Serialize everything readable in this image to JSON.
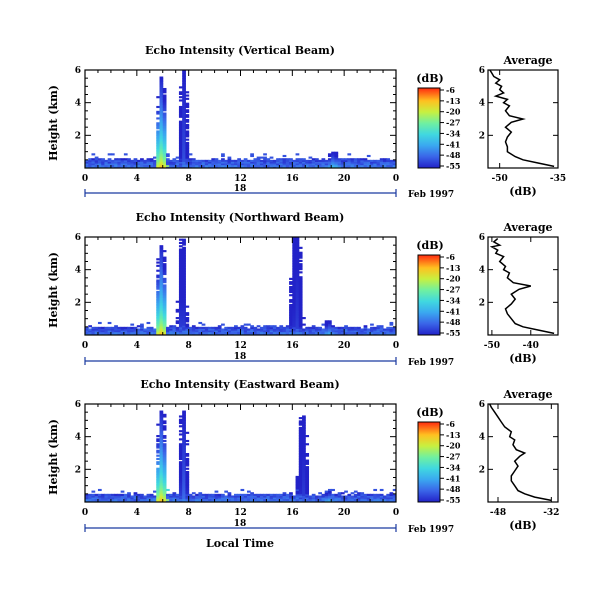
{
  "chart_data": [
    {
      "type": "heatmap",
      "title": "Echo Intensity (Vertical Beam)",
      "ylabel": "Height (km)",
      "xlim": [
        0,
        24
      ],
      "ylim": [
        0,
        6
      ],
      "x_ticks": [
        "0",
        "4",
        "8",
        "12",
        "16",
        "20",
        "0"
      ],
      "y_ticks": [
        "2",
        "4",
        "6"
      ],
      "date_axis": {
        "day_label": "18",
        "month_label": "Feb 1997"
      },
      "colorbar": {
        "unit": "(dB)",
        "ticks": [
          "-6",
          "-13",
          "-20",
          "-27",
          "-34",
          "-41",
          "-48",
          "-55"
        ]
      },
      "features": {
        "ground_layer_top_km": 0.55,
        "spikes": [
          {
            "t": 5.9,
            "width_h": 0.45,
            "top_km": 5.6,
            "core_db": -8
          },
          {
            "t": 7.6,
            "width_h": 0.4,
            "top_km": 6.0,
            "core_db": -48
          },
          {
            "t": 19.2,
            "width_h": 0.6,
            "top_km": 1.0,
            "core_db": -30
          }
        ]
      },
      "average_profile": {
        "title": "Average",
        "xlabel": "(dB)",
        "x_ticks": [
          "-50",
          "-35"
        ],
        "xlim": [
          -53,
          -35
        ],
        "y_ticks": [
          "2",
          "4",
          "6"
        ],
        "ylim": [
          0,
          6
        ],
        "height_km": [
          0.1,
          0.3,
          0.5,
          0.7,
          1.0,
          1.3,
          1.6,
          1.9,
          2.2,
          2.5,
          2.8,
          3.0,
          3.2,
          3.5,
          3.8,
          4.0,
          4.2,
          4.4,
          4.6,
          4.8,
          5.0,
          5.2,
          5.4,
          5.6,
          5.8,
          6.0
        ],
        "value_db": [
          -36,
          -40,
          -44,
          -46,
          -48,
          -48,
          -48.5,
          -48,
          -47,
          -48.5,
          -47,
          -44,
          -47.5,
          -48.5,
          -47.5,
          -49,
          -48,
          -51,
          -49,
          -50,
          -49.5,
          -51,
          -50,
          -51.5,
          -52,
          -52.5
        ]
      }
    },
    {
      "type": "heatmap",
      "title": "Echo Intensity (Northward Beam)",
      "ylabel": "Height (km)",
      "xlim": [
        0,
        24
      ],
      "ylim": [
        0,
        6
      ],
      "x_ticks": [
        "0",
        "4",
        "8",
        "12",
        "16",
        "20",
        "0"
      ],
      "y_ticks": [
        "2",
        "4",
        "6"
      ],
      "date_axis": {
        "day_label": "18",
        "month_label": "Feb 1997"
      },
      "colorbar": {
        "unit": "(dB)",
        "ticks": [
          "-6",
          "-13",
          "-20",
          "-27",
          "-34",
          "-41",
          "-48",
          "-55"
        ]
      },
      "features": {
        "ground_layer_top_km": 0.5,
        "spikes": [
          {
            "t": 5.9,
            "width_h": 0.45,
            "top_km": 5.5,
            "core_db": -8
          },
          {
            "t": 7.5,
            "width_h": 0.4,
            "top_km": 5.9,
            "core_db": -48
          },
          {
            "t": 16.3,
            "width_h": 0.6,
            "top_km": 6.0,
            "core_db": -50
          },
          {
            "t": 18.8,
            "width_h": 0.5,
            "top_km": 0.9,
            "core_db": -32
          }
        ]
      },
      "average_profile": {
        "title": "Average",
        "xlabel": "(dB)",
        "x_ticks": [
          "-50",
          "-40"
        ],
        "xlim": [
          -51,
          -33
        ],
        "y_ticks": [
          "2",
          "4",
          "6"
        ],
        "ylim": [
          0,
          6
        ],
        "height_km": [
          0.1,
          0.3,
          0.5,
          0.7,
          1.0,
          1.3,
          1.6,
          1.9,
          2.2,
          2.5,
          2.8,
          3.0,
          3.2,
          3.5,
          3.8,
          4.0,
          4.2,
          4.5,
          4.8,
          5.0,
          5.2,
          5.4,
          5.5,
          5.7,
          5.9
        ],
        "value_db": [
          -34,
          -38,
          -42,
          -44,
          -45,
          -46,
          -46.5,
          -45,
          -44,
          -45,
          -43,
          -40,
          -44.5,
          -46,
          -45.5,
          -47,
          -46.5,
          -48,
          -47,
          -49,
          -48.5,
          -50,
          -48,
          -49.5,
          -48.5
        ]
      }
    },
    {
      "type": "heatmap",
      "title": "Echo Intensity (Eastward Beam)",
      "ylabel": "Height (km)",
      "xlabel": "Local Time",
      "xlim": [
        0,
        24
      ],
      "ylim": [
        0,
        6
      ],
      "x_ticks": [
        "0",
        "4",
        "8",
        "12",
        "16",
        "20",
        "0"
      ],
      "y_ticks": [
        "2",
        "4",
        "6"
      ],
      "date_axis": {
        "day_label": "18",
        "month_label": "Feb 1997"
      },
      "colorbar": {
        "unit": "(dB)",
        "ticks": [
          "-6",
          "-13",
          "-20",
          "-27",
          "-34",
          "-41",
          "-48",
          "-55"
        ]
      },
      "features": {
        "ground_layer_top_km": 0.5,
        "spikes": [
          {
            "t": 5.9,
            "width_h": 0.45,
            "top_km": 5.6,
            "core_db": -8
          },
          {
            "t": 7.6,
            "width_h": 0.4,
            "top_km": 5.6,
            "core_db": -45
          },
          {
            "t": 16.8,
            "width_h": 0.5,
            "top_km": 5.3,
            "core_db": -50
          },
          {
            "t": 18.8,
            "width_h": 0.5,
            "top_km": 0.7,
            "core_db": -30
          }
        ]
      },
      "average_profile": {
        "title": "Average",
        "xlabel": "(dB)",
        "x_ticks": [
          "-48",
          "-32"
        ],
        "xlim": [
          -51,
          -30
        ],
        "y_ticks": [
          "2",
          "4",
          "6"
        ],
        "ylim": [
          0,
          6
        ],
        "height_km": [
          0.1,
          0.3,
          0.5,
          0.7,
          1.0,
          1.3,
          1.6,
          1.9,
          2.2,
          2.5,
          2.8,
          3.0,
          3.2,
          3.5,
          3.8,
          4.0,
          4.3,
          4.6,
          4.9,
          5.2,
          5.5,
          5.8,
          6.0
        ],
        "value_db": [
          -32,
          -37,
          -40,
          -42,
          -43,
          -44,
          -44,
          -43,
          -42,
          -43,
          -41.5,
          -40,
          -42.5,
          -43.5,
          -43,
          -44.5,
          -44,
          -46,
          -47,
          -48,
          -49,
          -50,
          -50.5
        ]
      }
    }
  ]
}
